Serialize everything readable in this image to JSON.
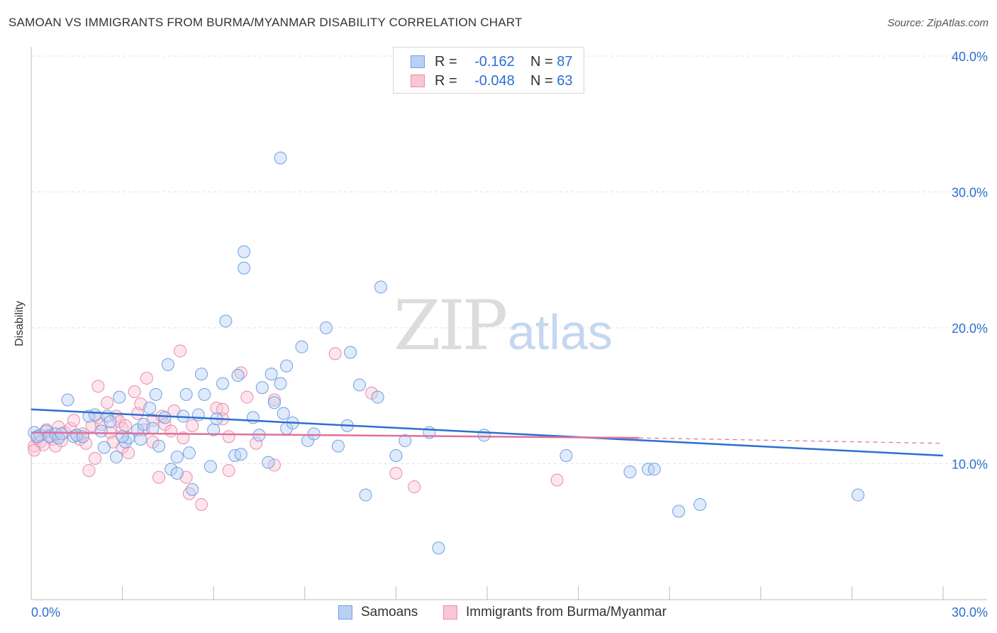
{
  "header": {
    "title": "SAMOAN VS IMMIGRANTS FROM BURMA/MYANMAR DISABILITY CORRELATION CHART",
    "source": "Source: ZipAtlas.com"
  },
  "watermark": {
    "zip": "ZIP",
    "atlas": "atlas"
  },
  "legend_top": [
    {
      "r_label": "R =",
      "r_value": "-0.162",
      "n_label": "N =",
      "n_value": "87",
      "color": "#b8d1f3",
      "border": "#6f9fe0"
    },
    {
      "r_label": "R =",
      "r_value": "-0.048",
      "n_label": "N =",
      "n_value": "63",
      "color": "#f9c6d6",
      "border": "#e98aab"
    }
  ],
  "legend_bottom": [
    {
      "label": "Samoans",
      "color": "#b8d1f3",
      "border": "#6f9fe0"
    },
    {
      "label": "Immigrants from Burma/Myanmar",
      "color": "#f9c6d6",
      "border": "#e98aab"
    }
  ],
  "chart_data": {
    "type": "scatter",
    "title": "SAMOAN VS IMMIGRANTS FROM BURMA/MYANMAR DISABILITY CORRELATION CHART",
    "xlabel": "",
    "ylabel": "Disability",
    "xlim": [
      0,
      30
    ],
    "ylim": [
      0,
      40
    ],
    "x_tick_labels": [
      "0.0%",
      "30.0%"
    ],
    "y_tick_values": [
      10,
      20,
      30,
      40
    ],
    "y_tick_labels": [
      "10.0%",
      "20.0%",
      "30.0%",
      "40.0%"
    ],
    "grid": true,
    "colors": {
      "samoans": "#6f9fe0",
      "burma": "#e98aab",
      "samoans_line": "#2c6fd1",
      "burma_line": "#e0709a",
      "tick_label": "#2c6fd1"
    },
    "series": [
      {
        "name": "Samoans",
        "trend": {
          "x": [
            0,
            30
          ],
          "y": [
            14.0,
            10.6
          ]
        },
        "points": [
          [
            0.1,
            12.3
          ],
          [
            0.3,
            12.1
          ],
          [
            0.5,
            12.4
          ],
          [
            0.6,
            12.0
          ],
          [
            0.8,
            12.2
          ],
          [
            0.9,
            11.9
          ],
          [
            1.2,
            14.7
          ],
          [
            1.4,
            12.0
          ],
          [
            1.5,
            12.1
          ],
          [
            1.7,
            12.0
          ],
          [
            1.9,
            13.5
          ],
          [
            2.1,
            13.6
          ],
          [
            2.3,
            12.4
          ],
          [
            2.4,
            11.2
          ],
          [
            2.5,
            13.5
          ],
          [
            2.6,
            13.1
          ],
          [
            2.8,
            10.5
          ],
          [
            2.9,
            14.9
          ],
          [
            3.1,
            11.6
          ],
          [
            3.2,
            11.9
          ],
          [
            3.5,
            12.5
          ],
          [
            3.6,
            11.8
          ],
          [
            3.7,
            12.9
          ],
          [
            3.9,
            14.1
          ],
          [
            4.0,
            12.6
          ],
          [
            4.1,
            15.1
          ],
          [
            4.2,
            11.3
          ],
          [
            4.4,
            13.4
          ],
          [
            4.5,
            17.3
          ],
          [
            4.6,
            9.6
          ],
          [
            4.8,
            9.3
          ],
          [
            4.8,
            10.5
          ],
          [
            5.0,
            13.5
          ],
          [
            5.1,
            15.1
          ],
          [
            5.2,
            10.8
          ],
          [
            5.3,
            8.1
          ],
          [
            5.5,
            13.6
          ],
          [
            5.6,
            16.6
          ],
          [
            5.7,
            15.1
          ],
          [
            5.9,
            9.8
          ],
          [
            6.0,
            12.5
          ],
          [
            6.1,
            13.3
          ],
          [
            6.3,
            15.9
          ],
          [
            6.4,
            20.5
          ],
          [
            6.7,
            10.6
          ],
          [
            6.8,
            16.5
          ],
          [
            6.9,
            10.7
          ],
          [
            7.0,
            25.6
          ],
          [
            7.3,
            13.4
          ],
          [
            7.0,
            24.4
          ],
          [
            7.5,
            12.1
          ],
          [
            7.6,
            15.6
          ],
          [
            7.8,
            10.1
          ],
          [
            7.9,
            16.6
          ],
          [
            8.0,
            14.5
          ],
          [
            8.2,
            15.9
          ],
          [
            8.3,
            13.7
          ],
          [
            8.4,
            17.2
          ],
          [
            8.4,
            12.6
          ],
          [
            8.2,
            32.5
          ],
          [
            8.6,
            13.0
          ],
          [
            8.9,
            18.6
          ],
          [
            9.1,
            11.7
          ],
          [
            9.3,
            12.2
          ],
          [
            9.7,
            20.0
          ],
          [
            10.1,
            11.3
          ],
          [
            10.4,
            12.8
          ],
          [
            10.5,
            18.2
          ],
          [
            10.8,
            15.8
          ],
          [
            11.0,
            7.7
          ],
          [
            11.4,
            14.9
          ],
          [
            11.5,
            23.0
          ],
          [
            12.0,
            10.6
          ],
          [
            12.3,
            11.7
          ],
          [
            13.1,
            12.3
          ],
          [
            13.4,
            3.8
          ],
          [
            14.9,
            12.1
          ],
          [
            17.6,
            10.6
          ],
          [
            19.7,
            9.4
          ],
          [
            20.3,
            9.6
          ],
          [
            20.5,
            9.6
          ],
          [
            21.3,
            6.5
          ],
          [
            22.0,
            7.0
          ],
          [
            27.2,
            7.7
          ],
          [
            1.0,
            12.2
          ],
          [
            3.0,
            12.0
          ],
          [
            0.2,
            12.0
          ]
        ]
      },
      {
        "name": "Immigrants from Burma/Myanmar",
        "trend": {
          "x": [
            0,
            20
          ],
          "y": [
            12.3,
            11.9
          ]
        },
        "trend_dashed": {
          "x": [
            20,
            30
          ],
          "y": [
            11.9,
            11.5
          ]
        },
        "points": [
          [
            0.1,
            11.3
          ],
          [
            0.2,
            11.9
          ],
          [
            0.3,
            11.6
          ],
          [
            0.4,
            11.4
          ],
          [
            0.5,
            12.5
          ],
          [
            0.6,
            12.1
          ],
          [
            0.7,
            11.8
          ],
          [
            0.8,
            11.3
          ],
          [
            0.9,
            12.7
          ],
          [
            1.0,
            11.7
          ],
          [
            1.1,
            12.3
          ],
          [
            1.3,
            12.6
          ],
          [
            1.4,
            13.2
          ],
          [
            1.5,
            12.1
          ],
          [
            1.6,
            11.8
          ],
          [
            1.7,
            12.2
          ],
          [
            1.8,
            11.5
          ],
          [
            1.9,
            9.5
          ],
          [
            2.0,
            12.8
          ],
          [
            2.1,
            10.4
          ],
          [
            2.2,
            13.4
          ],
          [
            2.3,
            12.9
          ],
          [
            2.2,
            15.7
          ],
          [
            2.5,
            14.5
          ],
          [
            2.6,
            12.3
          ],
          [
            2.7,
            11.6
          ],
          [
            2.8,
            13.5
          ],
          [
            2.9,
            13.1
          ],
          [
            3.0,
            12.6
          ],
          [
            3.0,
            11.2
          ],
          [
            3.1,
            12.8
          ],
          [
            3.2,
            10.8
          ],
          [
            3.4,
            15.3
          ],
          [
            3.5,
            13.7
          ],
          [
            3.6,
            14.4
          ],
          [
            3.7,
            12.5
          ],
          [
            3.8,
            16.3
          ],
          [
            4.0,
            13.2
          ],
          [
            4.0,
            11.6
          ],
          [
            4.2,
            9.0
          ],
          [
            4.3,
            13.5
          ],
          [
            4.4,
            12.9
          ],
          [
            4.6,
            12.4
          ],
          [
            4.7,
            13.9
          ],
          [
            4.9,
            18.3
          ],
          [
            5.0,
            11.9
          ],
          [
            5.1,
            9.0
          ],
          [
            5.2,
            7.8
          ],
          [
            5.3,
            12.8
          ],
          [
            5.6,
            7.0
          ],
          [
            6.1,
            14.1
          ],
          [
            6.3,
            14.0
          ],
          [
            6.3,
            13.3
          ],
          [
            6.5,
            9.5
          ],
          [
            6.5,
            12.0
          ],
          [
            6.9,
            16.7
          ],
          [
            7.1,
            14.9
          ],
          [
            7.4,
            11.5
          ],
          [
            8.0,
            9.9
          ],
          [
            10.0,
            18.1
          ],
          [
            11.2,
            15.2
          ],
          [
            12.0,
            9.3
          ],
          [
            12.6,
            8.3
          ]
        ]
      }
    ],
    "extra_burma_points": [
      [
        17.3,
        8.8
      ],
      [
        8.0,
        14.7
      ],
      [
        0.1,
        11.0
      ]
    ]
  }
}
